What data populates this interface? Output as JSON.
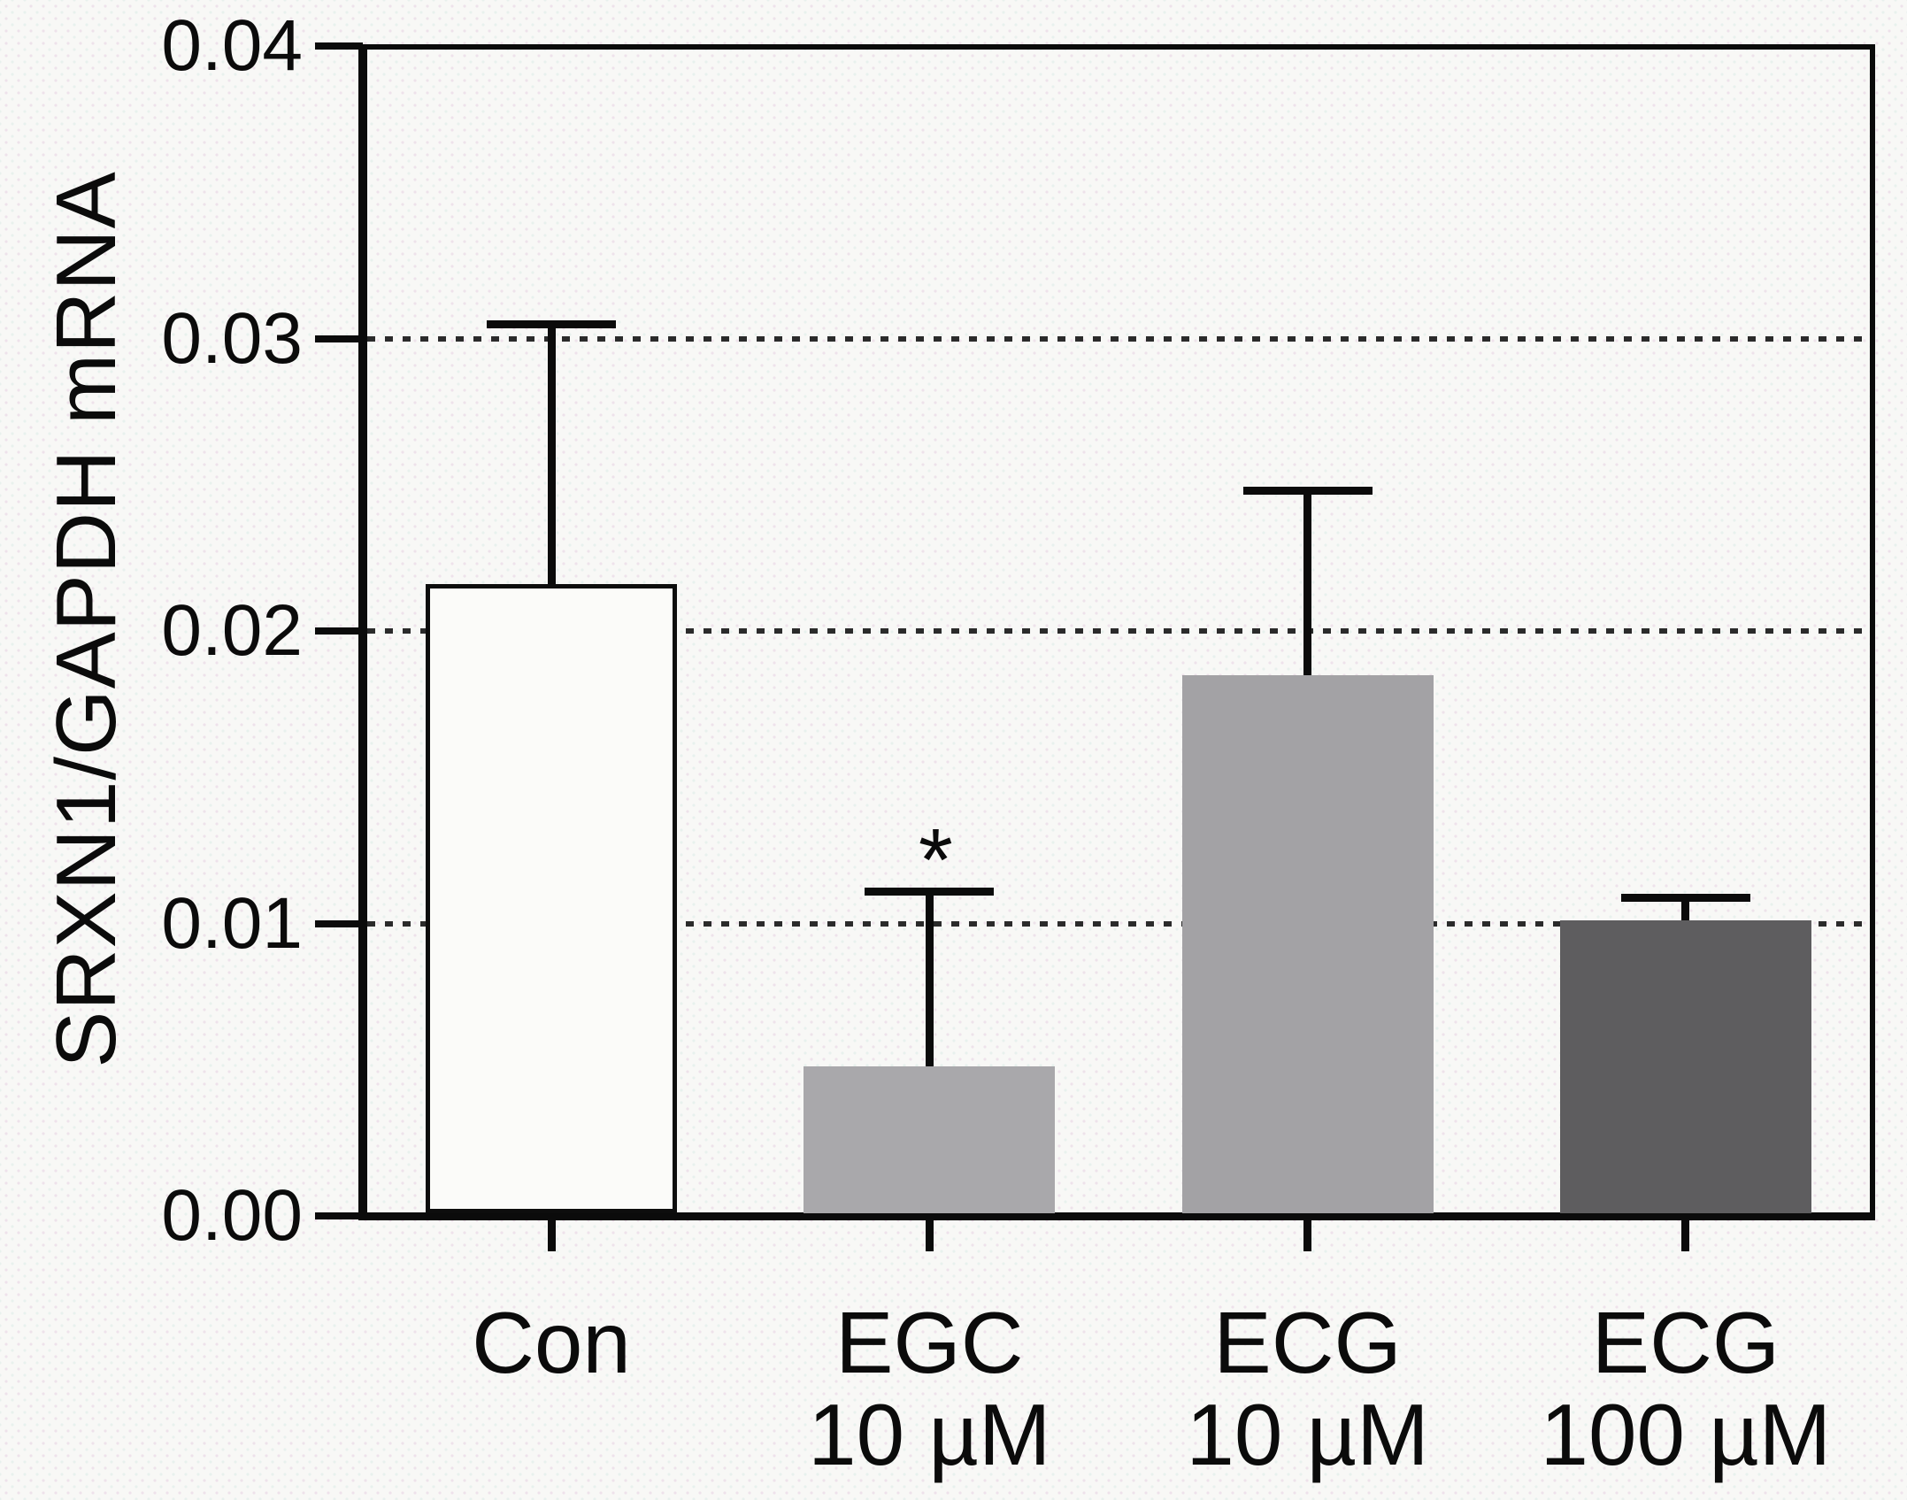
{
  "figure": {
    "background": "#f8f8f6",
    "axis_color": "#0b0b0b",
    "grid_color": "#2b2b2b"
  },
  "chart_data": {
    "type": "bar",
    "title": "",
    "xlabel": "",
    "ylabel": "SRXN1/GAPDH mRNA",
    "ylim": [
      0,
      0.04
    ],
    "grid": "dotted horizontal",
    "legend": "none",
    "yticks": [
      {
        "value": 0.0,
        "label": "0.00"
      },
      {
        "value": 0.01,
        "label": "0.01"
      },
      {
        "value": 0.02,
        "label": "0.02"
      },
      {
        "value": 0.03,
        "label": "0.03"
      },
      {
        "value": 0.04,
        "label": "0.04"
      }
    ],
    "gridline_values": [
      0.01,
      0.02,
      0.03
    ],
    "categories": [
      "Con",
      "EGC 10 µM",
      "ECG 10 µM",
      "ECG 100 µM"
    ],
    "bars": [
      {
        "label_lines": [
          "Con"
        ],
        "value": 0.0216,
        "error_up": 0.0089,
        "fill": "#fbfbf9",
        "outline": "#0d0d0d",
        "significance": ""
      },
      {
        "label_lines": [
          "EGC",
          "10 µM"
        ],
        "value": 0.0051,
        "error_up": 0.006,
        "fill": "#a9a8ab",
        "outline": "",
        "significance": "*"
      },
      {
        "label_lines": [
          "ECG",
          "10 µM"
        ],
        "value": 0.0185,
        "error_up": 0.0063,
        "fill": "#a3a2a5",
        "outline": "",
        "significance": ""
      },
      {
        "label_lines": [
          "ECG",
          "100 µM"
        ],
        "value": 0.0101,
        "error_up": 0.0008,
        "fill": "#5e5d5f",
        "outline": "",
        "significance": ""
      }
    ]
  }
}
